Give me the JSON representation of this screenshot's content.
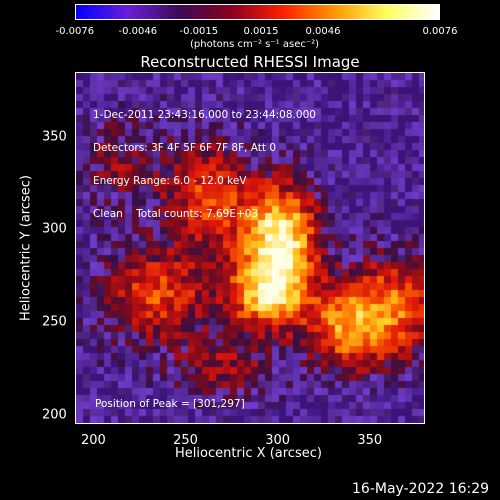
{
  "colorbar": {
    "ticks": [
      "-0.0076",
      "-0.0046",
      "-0.0015",
      "0.0015",
      "0.0046",
      "0.0076"
    ],
    "unit_label": "(photons cm⁻² s⁻¹ asec⁻²)",
    "colors": [
      "#0000ff",
      "#6a1fd8",
      "#3b0a55",
      "#8c0020",
      "#ff2000",
      "#ff9a00",
      "#ffff60",
      "#ffffff"
    ]
  },
  "title": "Reconstructed RHESSI Image",
  "info_lines": [
    "1-Dec-2011 23:43:16.000 to 23:44:08.000",
    "Detectors: 3F 4F 5F 6F 7F 8F, Att 0",
    "Energy Range: 6.0 - 12.0 keV",
    "Clean    Total counts: 7.69E+03"
  ],
  "peak_text": "Position of Peak = [301,297]",
  "timestamp": "16-May-2022 16:29",
  "chart_data": {
    "type": "heatmap",
    "xlabel": "Heliocentric X (arcsec)",
    "ylabel": "Heliocentric Y (arcsec)",
    "xlim": [
      190,
      380
    ],
    "ylim": [
      195,
      385
    ],
    "x_ticks": [
      200,
      250,
      300,
      350
    ],
    "y_ticks": [
      200,
      250,
      300,
      350
    ],
    "peak": [
      301,
      297
    ],
    "sources": [
      {
        "x": 301,
        "y": 297,
        "amp": 1.0,
        "sx": 14,
        "sy": 20
      },
      {
        "x": 294,
        "y": 265,
        "amp": 0.75,
        "sx": 16,
        "sy": 14
      },
      {
        "x": 262,
        "y": 318,
        "amp": 0.55,
        "sx": 16,
        "sy": 22
      },
      {
        "x": 232,
        "y": 265,
        "amp": 0.55,
        "sx": 22,
        "sy": 18
      },
      {
        "x": 360,
        "y": 258,
        "amp": 0.65,
        "sx": 20,
        "sy": 20
      },
      {
        "x": 335,
        "y": 245,
        "amp": 0.5,
        "sx": 15,
        "sy": 15
      },
      {
        "x": 270,
        "y": 225,
        "amp": 0.35,
        "sx": 20,
        "sy": 12
      },
      {
        "x": 215,
        "y": 335,
        "amp": 0.3,
        "sx": 18,
        "sy": 18
      }
    ]
  }
}
